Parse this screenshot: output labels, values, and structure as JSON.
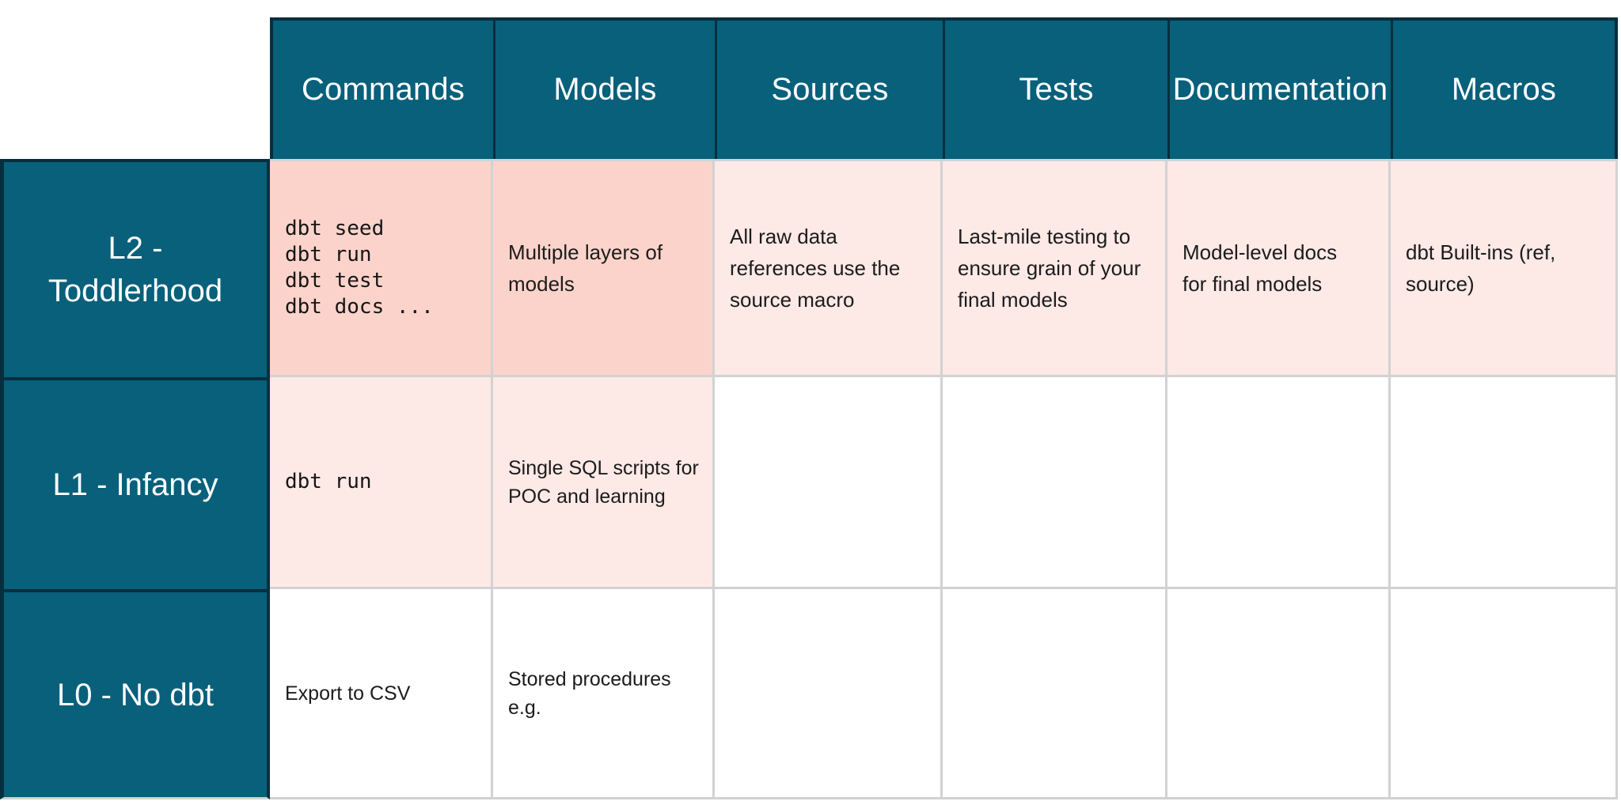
{
  "colors": {
    "teal": "#08607b",
    "teal-border": "#062f3e",
    "cell-strong": "#fcd3ca",
    "cell-light": "#fde9e6",
    "grid-line": "#d2d2d2",
    "header-underline": "#ccd6db",
    "header-text": "#ffffff",
    "cell-text": "#1c1c1c",
    "page-bg": "#ffffff"
  },
  "table": {
    "column_headers": [
      "Commands",
      "Models",
      "Sources",
      "Tests",
      "Documentation",
      "Macros"
    ],
    "rows": [
      {
        "label": "L2 - Toddlerhood",
        "cells": [
          {
            "kind": "code",
            "shade": "strong",
            "lines": [
              "dbt seed",
              "dbt run",
              "dbt test",
              "dbt docs ..."
            ]
          },
          {
            "kind": "text",
            "shade": "strong",
            "text": "Multiple layers of models"
          },
          {
            "kind": "text",
            "shade": "light",
            "text": "All raw data references use the source macro"
          },
          {
            "kind": "text",
            "shade": "light",
            "text": "Last-mile testing to ensure grain of your final models"
          },
          {
            "kind": "text",
            "shade": "light",
            "text": "Model-level docs for final models"
          },
          {
            "kind": "text",
            "shade": "light",
            "text": "dbt Built-ins (ref, source)"
          }
        ]
      },
      {
        "label": "L1 - Infancy",
        "cells": [
          {
            "kind": "code",
            "shade": "light",
            "lines": [
              "dbt run"
            ]
          },
          {
            "kind": "text",
            "shade": "light",
            "text": "Single SQL scripts for POC and learning"
          },
          {
            "kind": "empty",
            "shade": "none",
            "text": ""
          },
          {
            "kind": "empty",
            "shade": "none",
            "text": ""
          },
          {
            "kind": "empty",
            "shade": "none",
            "text": ""
          },
          {
            "kind": "empty",
            "shade": "none",
            "text": ""
          }
        ]
      },
      {
        "label": "L0 - No dbt",
        "cells": [
          {
            "kind": "text",
            "shade": "none",
            "text": "Export to CSV"
          },
          {
            "kind": "text",
            "shade": "none",
            "text": "Stored procedures e.g."
          },
          {
            "kind": "empty",
            "shade": "none",
            "text": ""
          },
          {
            "kind": "empty",
            "shade": "none",
            "text": ""
          },
          {
            "kind": "empty",
            "shade": "none",
            "text": ""
          },
          {
            "kind": "empty",
            "shade": "none",
            "text": ""
          }
        ]
      }
    ]
  }
}
